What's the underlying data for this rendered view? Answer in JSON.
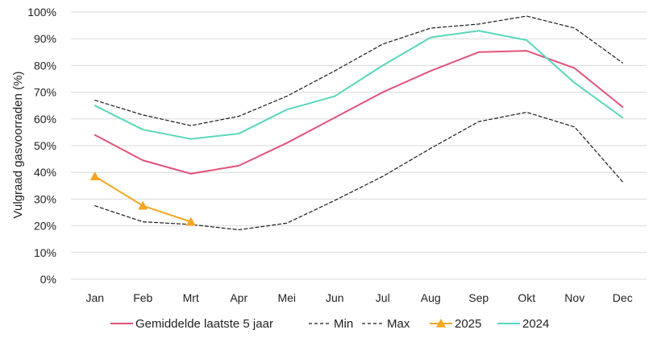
{
  "chart_data": {
    "type": "line",
    "title": "",
    "xlabel": "",
    "ylabel": "Vulgraad gasvoorraden (%)",
    "categories": [
      "Jan",
      "Feb",
      "Mrt",
      "Apr",
      "Mei",
      "Jun",
      "Jul",
      "Aug",
      "Sep",
      "Okt",
      "Nov",
      "Dec"
    ],
    "ylim": [
      0,
      100
    ],
    "yticks": [
      "0%",
      "10%",
      "20%",
      "30%",
      "40%",
      "50%",
      "60%",
      "70%",
      "80%",
      "90%",
      "100%"
    ],
    "grid": true,
    "legend_position": "bottom",
    "series": [
      {
        "name": "Gemiddelde laatste 5 jaar",
        "color": "#e0537a",
        "dash": "solid",
        "marker": "none",
        "values": [
          54,
          44.5,
          39.5,
          42.5,
          51,
          60.5,
          70,
          78,
          85,
          85.5,
          79,
          64.5
        ]
      },
      {
        "name": "Min",
        "color": "#1a1a1a",
        "dash": "dashed",
        "marker": "none",
        "values": [
          27.5,
          21.5,
          20.5,
          18.5,
          21,
          29.5,
          38.5,
          49,
          59,
          62.5,
          57,
          36.5
        ]
      },
      {
        "name": "Max",
        "color": "#1a1a1a",
        "dash": "dashed",
        "marker": "none",
        "values": [
          67,
          61.5,
          57.5,
          61,
          68.5,
          78,
          88,
          94,
          95.5,
          98.5,
          94,
          81
        ]
      },
      {
        "name": "2025",
        "color": "#f5a623",
        "dash": "solid",
        "marker": "triangle",
        "values": [
          38.5,
          27.5,
          21.5,
          null,
          null,
          null,
          null,
          null,
          null,
          null,
          null,
          null
        ]
      },
      {
        "name": "2024",
        "color": "#5ad6bd",
        "dash": "solid",
        "marker": "none",
        "values": [
          65,
          56,
          52.5,
          54.5,
          63.5,
          68.5,
          80,
          90.5,
          93,
          89.5,
          73.5,
          60.5
        ]
      }
    ]
  }
}
